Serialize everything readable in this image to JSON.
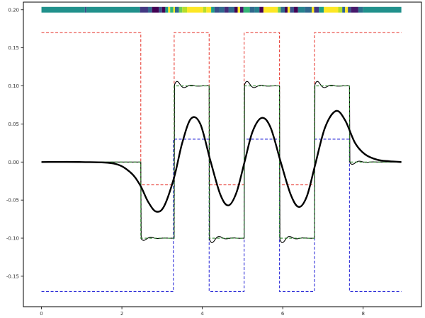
{
  "chart_data": {
    "type": "line",
    "title": "",
    "xlabel": "",
    "ylabel": "",
    "xlim": [
      -0.45,
      9.45
    ],
    "ylim": [
      -0.19,
      0.21
    ],
    "grid": false,
    "legend": "none",
    "x_ticks": [
      {
        "value": 0,
        "label": "0"
      },
      {
        "value": 2,
        "label": "2"
      },
      {
        "value": 4,
        "label": "4"
      },
      {
        "value": 6,
        "label": "6"
      },
      {
        "value": 8,
        "label": "8"
      }
    ],
    "y_ticks": [
      {
        "value": 0.2,
        "label": "0.20"
      },
      {
        "value": 0.15,
        "label": "0.15"
      },
      {
        "value": 0.1,
        "label": "0.10"
      },
      {
        "value": 0.05,
        "label": "0.05"
      },
      {
        "value": 0.0,
        "label": "0.00"
      },
      {
        "value": -0.05,
        "label": "-0.05"
      },
      {
        "value": -0.1,
        "label": "-0.10"
      },
      {
        "value": -0.15,
        "label": "-0.15"
      }
    ],
    "series": [
      {
        "style": "red-dashed-upper-bound",
        "color": "#e8423a",
        "step_x": [
          0,
          2.47,
          2.47,
          3.3,
          3.3,
          4.17,
          4.17,
          5.04,
          5.04,
          5.92,
          5.92,
          6.79,
          6.79,
          8.95
        ],
        "step_y": [
          0.17,
          0.17,
          -0.03,
          -0.03,
          0.17,
          0.17,
          -0.03,
          -0.03,
          0.17,
          0.17,
          -0.03,
          -0.03,
          0.17,
          0.17
        ]
      },
      {
        "style": "blue-dashed-lower-bound",
        "color": "#2f2fd8",
        "step_x": [
          0,
          3.28,
          3.28,
          4.17,
          4.17,
          5.04,
          5.04,
          5.92,
          5.92,
          6.79,
          6.79,
          7.66,
          7.66,
          8.95
        ],
        "step_y": [
          -0.17,
          -0.17,
          0.03,
          0.03,
          -0.17,
          -0.17,
          0.03,
          0.03,
          -0.17,
          -0.17,
          0.03,
          0.03,
          -0.17,
          -0.17
        ]
      },
      {
        "style": "green-dashed-reference",
        "color": "#2e8b2e",
        "step_x": [
          0,
          2.47,
          2.47,
          3.3,
          3.3,
          4.17,
          4.17,
          5.04,
          5.04,
          5.92,
          5.92,
          6.79,
          6.79,
          7.66,
          7.66,
          8.95
        ],
        "step_y": [
          0.0,
          0.0,
          -0.1,
          -0.1,
          0.1,
          0.1,
          -0.1,
          -0.1,
          0.1,
          0.1,
          -0.1,
          -0.1,
          0.1,
          0.1,
          0.0,
          0.0
        ]
      },
      {
        "style": "black-thin-tracking",
        "color": "#000000"
      },
      {
        "style": "black-thick-smooth",
        "color": "#000000",
        "x": [
          0,
          1.0,
          1.8,
          2.2,
          2.45,
          2.65,
          2.85,
          3.05,
          3.3,
          3.5,
          3.72,
          3.95,
          4.2,
          4.45,
          4.65,
          4.85,
          5.05,
          5.25,
          5.48,
          5.7,
          5.95,
          6.2,
          6.4,
          6.6,
          6.8,
          7.05,
          7.32,
          7.55,
          7.8,
          8.05,
          8.35,
          8.65,
          8.95
        ],
        "y": [
          0.0,
          0.0,
          -0.002,
          -0.013,
          -0.03,
          -0.052,
          -0.065,
          -0.058,
          -0.02,
          0.025,
          0.057,
          0.05,
          0.002,
          -0.043,
          -0.057,
          -0.04,
          0.0,
          0.04,
          0.058,
          0.045,
          0.0,
          -0.043,
          -0.059,
          -0.045,
          -0.005,
          0.045,
          0.067,
          0.055,
          0.025,
          0.01,
          0.003,
          0.001,
          0.0
        ]
      }
    ],
    "colorbar": {
      "y": 0.2,
      "x_range": [
        0,
        8.95
      ],
      "segments": [
        {
          "x0": 0.0,
          "x1": 1.08,
          "color": "#21918c"
        },
        {
          "x0": 1.08,
          "x1": 1.12,
          "color": "#3b528b"
        },
        {
          "x0": 1.12,
          "x1": 2.45,
          "color": "#21918c"
        },
        {
          "x0": 2.45,
          "x1": 2.65,
          "color": "#443983"
        },
        {
          "x0": 2.65,
          "x1": 2.75,
          "color": "#31688e"
        },
        {
          "x0": 2.75,
          "x1": 2.92,
          "color": "#440154"
        },
        {
          "x0": 2.92,
          "x1": 3.0,
          "color": "#3b528b"
        },
        {
          "x0": 3.0,
          "x1": 3.08,
          "color": "#440154"
        },
        {
          "x0": 3.08,
          "x1": 3.15,
          "color": "#1f9e89"
        },
        {
          "x0": 3.15,
          "x1": 3.2,
          "color": "#fde725"
        },
        {
          "x0": 3.2,
          "x1": 3.28,
          "color": "#35b779"
        },
        {
          "x0": 3.28,
          "x1": 3.32,
          "color": "#fde725"
        },
        {
          "x0": 3.32,
          "x1": 3.42,
          "color": "#31688e"
        },
        {
          "x0": 3.42,
          "x1": 3.5,
          "color": "#6ece58"
        },
        {
          "x0": 3.5,
          "x1": 3.62,
          "color": "#b5de2b"
        },
        {
          "x0": 3.62,
          "x1": 4.02,
          "color": "#fde725"
        },
        {
          "x0": 4.02,
          "x1": 4.1,
          "color": "#b5de2b"
        },
        {
          "x0": 4.1,
          "x1": 4.22,
          "color": "#fde725"
        },
        {
          "x0": 4.22,
          "x1": 4.3,
          "color": "#1f9e89"
        },
        {
          "x0": 4.3,
          "x1": 4.42,
          "color": "#3b528b"
        },
        {
          "x0": 4.42,
          "x1": 4.55,
          "color": "#31688e"
        },
        {
          "x0": 4.55,
          "x1": 4.65,
          "color": "#472c7a"
        },
        {
          "x0": 4.65,
          "x1": 4.8,
          "color": "#31688e"
        },
        {
          "x0": 4.8,
          "x1": 4.88,
          "color": "#440154"
        },
        {
          "x0": 4.88,
          "x1": 4.94,
          "color": "#fde725"
        },
        {
          "x0": 4.94,
          "x1": 5.02,
          "color": "#481a6c"
        },
        {
          "x0": 5.02,
          "x1": 5.18,
          "color": "#35b779"
        },
        {
          "x0": 5.18,
          "x1": 5.3,
          "color": "#31688e"
        },
        {
          "x0": 5.3,
          "x1": 5.42,
          "color": "#26828e"
        },
        {
          "x0": 5.42,
          "x1": 5.52,
          "color": "#440154"
        },
        {
          "x0": 5.52,
          "x1": 5.88,
          "color": "#fde725"
        },
        {
          "x0": 5.88,
          "x1": 5.95,
          "color": "#6ece58"
        },
        {
          "x0": 5.95,
          "x1": 6.05,
          "color": "#31688e"
        },
        {
          "x0": 6.05,
          "x1": 6.12,
          "color": "#440154"
        },
        {
          "x0": 6.12,
          "x1": 6.18,
          "color": "#fde725"
        },
        {
          "x0": 6.18,
          "x1": 6.28,
          "color": "#3b528b"
        },
        {
          "x0": 6.28,
          "x1": 6.38,
          "color": "#440154"
        },
        {
          "x0": 6.38,
          "x1": 6.55,
          "color": "#26828e"
        },
        {
          "x0": 6.55,
          "x1": 6.72,
          "color": "#31688e"
        },
        {
          "x0": 6.72,
          "x1": 6.78,
          "color": "#fde725"
        },
        {
          "x0": 6.78,
          "x1": 6.9,
          "color": "#443983"
        },
        {
          "x0": 6.9,
          "x1": 7.02,
          "color": "#1f9e89"
        },
        {
          "x0": 7.02,
          "x1": 7.38,
          "color": "#fde725"
        },
        {
          "x0": 7.38,
          "x1": 7.48,
          "color": "#b5de2b"
        },
        {
          "x0": 7.48,
          "x1": 7.55,
          "color": "#31688e"
        },
        {
          "x0": 7.55,
          "x1": 7.62,
          "color": "#fde725"
        },
        {
          "x0": 7.62,
          "x1": 7.7,
          "color": "#3b528b"
        },
        {
          "x0": 7.7,
          "x1": 7.88,
          "color": "#481a6c"
        },
        {
          "x0": 7.88,
          "x1": 8.0,
          "color": "#2c728e"
        },
        {
          "x0": 8.0,
          "x1": 8.95,
          "color": "#21918c"
        }
      ]
    }
  }
}
